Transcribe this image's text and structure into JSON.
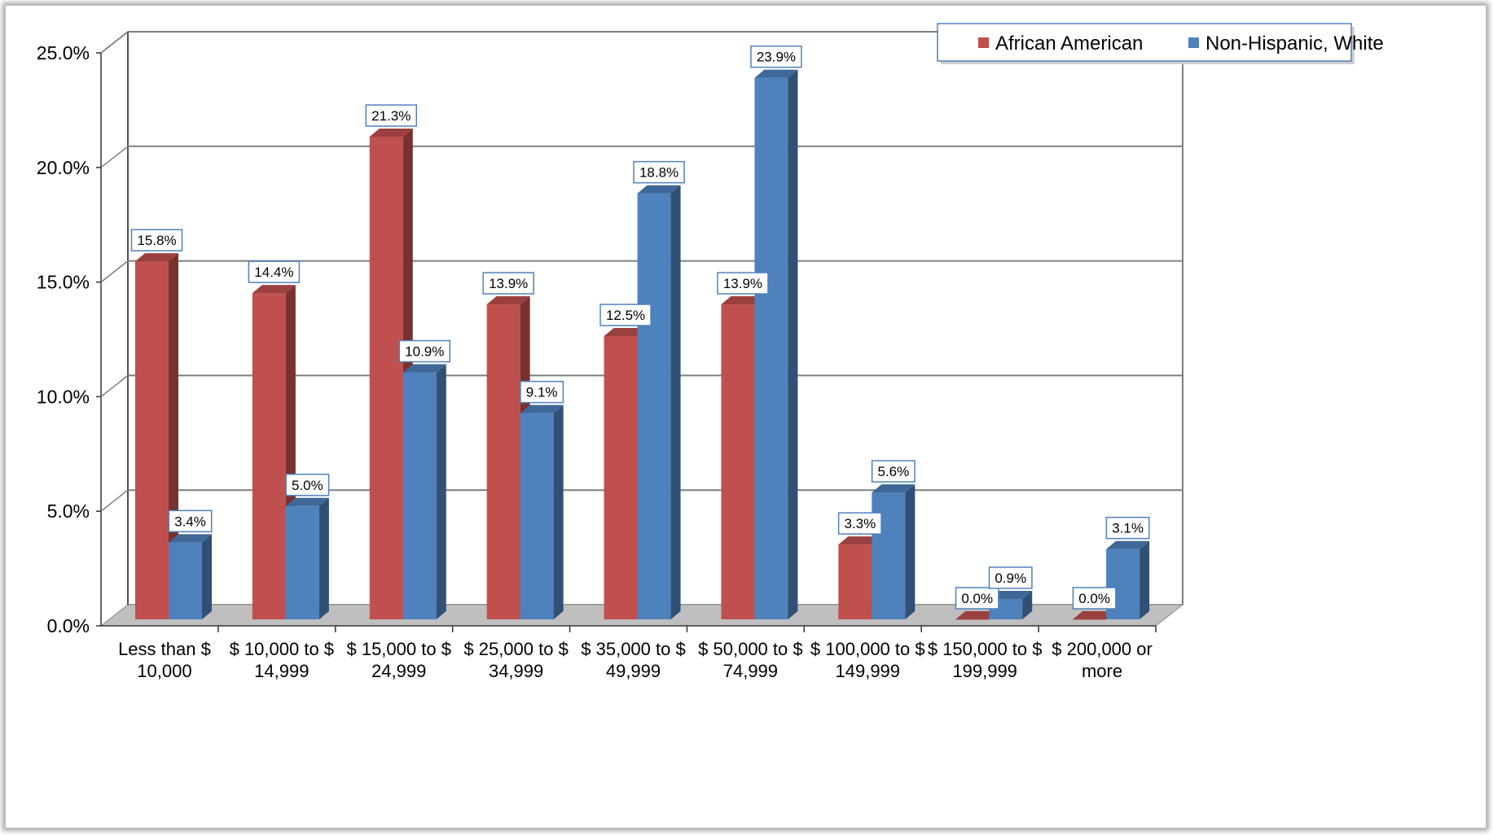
{
  "chart_data": {
    "type": "bar",
    "title": "",
    "xlabel": "",
    "ylabel": "",
    "ylim": [
      0,
      25
    ],
    "yticks": [
      "0.0%",
      "5.0%",
      "10.0%",
      "15.0%",
      "20.0%",
      "25.0%"
    ],
    "categories": [
      [
        "Less than $",
        "10,000"
      ],
      [
        "$ 10,000 to $",
        "14,999"
      ],
      [
        "$ 15,000 to  $",
        "24,999"
      ],
      [
        "$ 25,000 to $",
        "34,999"
      ],
      [
        "$ 35,000 to $",
        "49,999"
      ],
      [
        "$ 50,000 to $",
        "74,999"
      ],
      [
        "$ 100,000 to $",
        "149,999"
      ],
      [
        "$ 150,000 to $",
        "199,999"
      ],
      [
        "$ 200,000 or",
        "more"
      ]
    ],
    "series": [
      {
        "name": "African American",
        "color": "#c0504d",
        "values": [
          15.8,
          14.4,
          21.3,
          13.9,
          12.5,
          13.9,
          3.3,
          0.0,
          0.0
        ],
        "labels": [
          "15.8%",
          "14.4%",
          "21.3%",
          "13.9%",
          "12.5%",
          "13.9%",
          "3.3%",
          "0.0%",
          "0.0%"
        ]
      },
      {
        "name": "Non-Hispanic, White",
        "color": "#4f81bd",
        "values": [
          3.4,
          5.0,
          10.9,
          9.1,
          18.8,
          23.9,
          5.6,
          0.9,
          3.1
        ],
        "labels": [
          "3.4%",
          "5.0%",
          "10.9%",
          "9.1%",
          "18.8%",
          "23.9%",
          "5.6%",
          "0.9%",
          "3.1%"
        ]
      }
    ],
    "legend_position": "top-right",
    "grid": true,
    "style": "3d-clustered-column"
  }
}
